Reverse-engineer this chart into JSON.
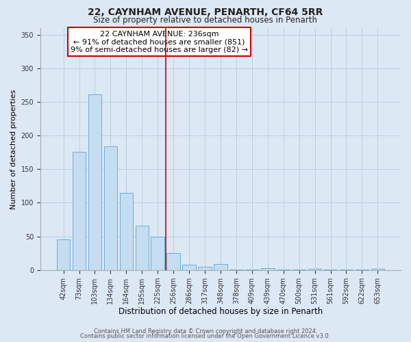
{
  "title": "22, CAYNHAM AVENUE, PENARTH, CF64 5RR",
  "subtitle": "Size of property relative to detached houses in Penarth",
  "xlabel": "Distribution of detached houses by size in Penarth",
  "ylabel": "Number of detached properties",
  "bar_labels": [
    "42sqm",
    "73sqm",
    "103sqm",
    "134sqm",
    "164sqm",
    "195sqm",
    "225sqm",
    "256sqm",
    "286sqm",
    "317sqm",
    "348sqm",
    "378sqm",
    "409sqm",
    "439sqm",
    "470sqm",
    "500sqm",
    "531sqm",
    "561sqm",
    "592sqm",
    "622sqm",
    "653sqm"
  ],
  "bar_values": [
    46,
    176,
    261,
    184,
    115,
    66,
    50,
    25,
    8,
    5,
    9,
    1,
    1,
    3,
    1,
    1,
    2,
    1,
    1,
    1,
    2
  ],
  "bar_color": "#c5ddf0",
  "bar_edge_color": "#6aaed6",
  "vline_x": 6.5,
  "vline_color": "#cc0000",
  "annotation_line1": "22 CAYNHAM AVENUE: 236sqm",
  "annotation_line2": "← 91% of detached houses are smaller (851)",
  "annotation_line3": "9% of semi-detached houses are larger (82) →",
  "annotation_box_color": "#ffffff",
  "annotation_box_edge": "#cc0000",
  "ylim": [
    0,
    360
  ],
  "yticks": [
    0,
    50,
    100,
    150,
    200,
    250,
    300,
    350
  ],
  "footer_line1": "Contains HM Land Registry data © Crown copyright and database right 2024.",
  "footer_line2": "Contains public sector information licensed under the Open Government Licence v3.0.",
  "background_color": "#dde8f5",
  "plot_background": "#dde8f5",
  "grid_color": "#bccfe0"
}
